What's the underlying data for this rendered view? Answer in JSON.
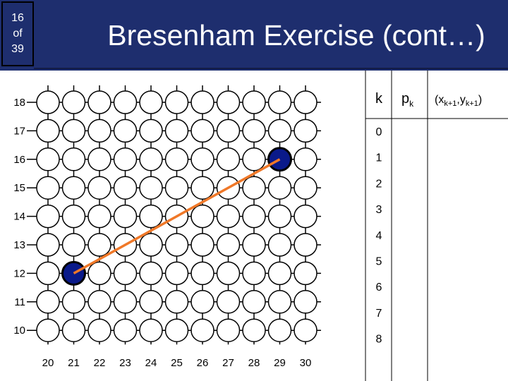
{
  "slide": {
    "number": "16",
    "of": "of",
    "total": "39"
  },
  "title": "Bresenham Exercise (cont…)",
  "grid": {
    "x_labels": [
      "20",
      "21",
      "22",
      "23",
      "24",
      "25",
      "26",
      "27",
      "28",
      "29",
      "30"
    ],
    "y_labels": [
      "18",
      "17",
      "16",
      "15",
      "14",
      "13",
      "12",
      "11",
      "10"
    ],
    "start_point": {
      "x": 21,
      "y": 12
    },
    "end_point": {
      "x": 29,
      "y": 16
    },
    "line_color": "#f07828",
    "filled_point_color": "#0a1a8a"
  },
  "table": {
    "headers": {
      "k": "k",
      "p": "p",
      "p_sub": "k",
      "coord_open": "(x",
      "coord_sub1": "k+1",
      "coord_mid": ",y",
      "coord_sub2": "k+1",
      "coord_close": ")"
    },
    "k_values": [
      "0",
      "1",
      "2",
      "3",
      "4",
      "5",
      "6",
      "7",
      "8"
    ]
  }
}
